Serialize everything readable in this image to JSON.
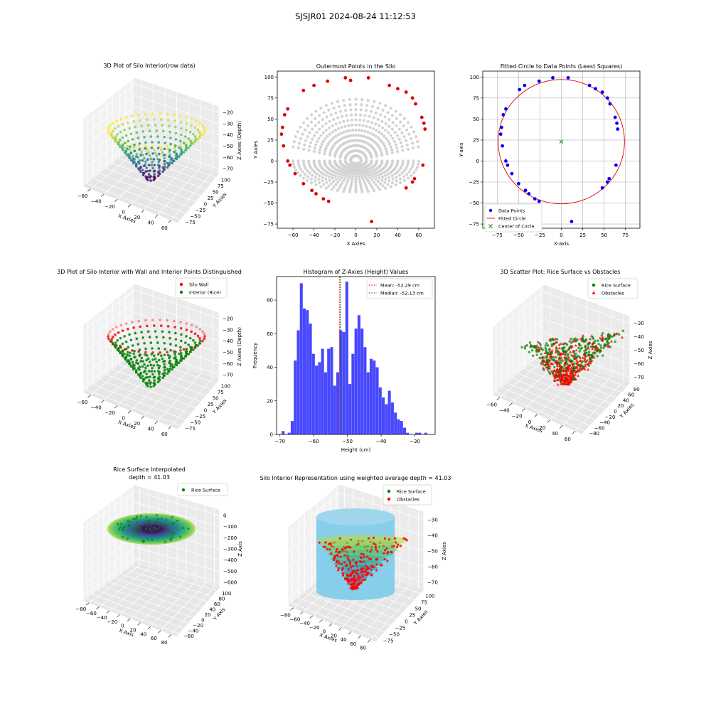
{
  "figure": {
    "title": "SJSJR01 2024-08-24 11:12:53"
  },
  "chart_data": [
    {
      "id": "p1",
      "type": "scatter",
      "title": "3D Plot of Silo Interior(row data)",
      "xlabel": "X Axies",
      "ylabel": "Y Axies",
      "zlabel": "Z Axies (Depth)",
      "x_ticks": [
        "−60",
        "−40",
        "−20",
        "0",
        "20",
        "40",
        "60"
      ],
      "y_ticks": [
        "−75",
        "−50",
        "−25",
        "0",
        "25",
        "50",
        "75",
        "100"
      ],
      "z_ticks": [
        "−20",
        "−30",
        "−40",
        "−50",
        "−60",
        "−70"
      ],
      "colormap": "viridis"
    },
    {
      "id": "p2",
      "type": "scatter",
      "title": "Outermost Points in the Silo",
      "xlabel": "X Axies",
      "ylabel": "Y Axies",
      "xlim": [
        -75,
        75
      ],
      "ylim": [
        -80,
        107
      ],
      "x_ticks": [
        -60,
        -40,
        -20,
        0,
        20,
        40,
        60
      ],
      "y_ticks": [
        -75,
        -50,
        -25,
        0,
        25,
        50,
        75,
        100
      ],
      "interior_color": "#d3d3d3",
      "outer_color": "#e00000",
      "outer_points": [
        [
          -65,
          62
        ],
        [
          -68,
          55
        ],
        [
          -70,
          40
        ],
        [
          -71,
          32
        ],
        [
          -69,
          18
        ],
        [
          -65,
          0
        ],
        [
          -63,
          -5
        ],
        [
          -58,
          -15
        ],
        [
          -50,
          -27
        ],
        [
          -42,
          -35
        ],
        [
          -38,
          -39
        ],
        [
          -31,
          -45
        ],
        [
          -26,
          -48
        ],
        [
          -10,
          99
        ],
        [
          -5,
          96
        ],
        [
          12,
          99
        ],
        [
          15,
          -72
        ],
        [
          32,
          90
        ],
        [
          40,
          86
        ],
        [
          48,
          82
        ],
        [
          54,
          75
        ],
        [
          57,
          68
        ],
        [
          63,
          52
        ],
        [
          65,
          45
        ],
        [
          66,
          38
        ],
        [
          64,
          -5
        ],
        [
          56,
          -21
        ],
        [
          54,
          -25
        ],
        [
          48,
          -32
        ],
        [
          -50,
          84
        ],
        [
          -40,
          90
        ],
        [
          -27,
          95
        ]
      ]
    },
    {
      "id": "p3",
      "type": "scatter",
      "title": "Fitted Circle to Data Points (Least Squares)",
      "xlabel": "X-axis",
      "ylabel": "Y-axis",
      "xlim": [
        -92,
        92
      ],
      "ylim": [
        -80,
        107
      ],
      "x_ticks": [
        -75,
        -50,
        -25,
        0,
        25,
        50,
        75
      ],
      "y_ticks": [
        -75,
        -50,
        -25,
        0,
        25,
        50,
        75,
        100
      ],
      "grid": true,
      "circle": {
        "center": [
          0,
          23
        ],
        "radius": 74
      },
      "legend": [
        "Data Points",
        "Fitted Circle",
        "Center of Circle"
      ],
      "legend_loc": "lower-left",
      "points": [
        [
          -65,
          62
        ],
        [
          -68,
          55
        ],
        [
          -70,
          40
        ],
        [
          -71,
          32
        ],
        [
          -69,
          18
        ],
        [
          -65,
          0
        ],
        [
          -63,
          -5
        ],
        [
          -58,
          -15
        ],
        [
          -50,
          -27
        ],
        [
          -42,
          -35
        ],
        [
          -38,
          -39
        ],
        [
          -31,
          -45
        ],
        [
          -26,
          -48
        ],
        [
          -10,
          99
        ],
        [
          8,
          99
        ],
        [
          12,
          -72
        ],
        [
          33,
          90
        ],
        [
          40,
          86
        ],
        [
          48,
          82
        ],
        [
          54,
          75
        ],
        [
          57,
          68
        ],
        [
          63,
          52
        ],
        [
          65,
          45
        ],
        [
          66,
          38
        ],
        [
          64,
          -5
        ],
        [
          56,
          -21
        ],
        [
          54,
          -25
        ],
        [
          48,
          -32
        ],
        [
          -49,
          85
        ],
        [
          -43,
          90
        ],
        [
          -26,
          95
        ]
      ]
    },
    {
      "id": "p4",
      "type": "scatter",
      "title": "3D Plot of Silo Interior with Wall and Interior Points Distinguished",
      "xlabel": "X Axies",
      "ylabel": "Y Axies",
      "zlabel": "Z Axies (Depth)",
      "x_ticks": [
        "−60",
        "−40",
        "−20",
        "0",
        "20",
        "40",
        "60"
      ],
      "y_ticks": [
        "−75",
        "−50",
        "−25",
        "0",
        "25",
        "50",
        "75",
        "100"
      ],
      "z_ticks": [
        "−20",
        "−30",
        "−40",
        "−50",
        "−60",
        "−70"
      ],
      "legend": [
        "Silo Wall",
        "Interior (Rice)"
      ],
      "legend_loc": "top-right"
    },
    {
      "id": "p5",
      "type": "bar",
      "title": "Histogram of Z-Axies (Height) Values",
      "xlabel": "Height (cm)",
      "ylabel": "Frequency",
      "xlim": [
        -71,
        -24
      ],
      "ylim": [
        0,
        94
      ],
      "x_ticks": [
        -70,
        -60,
        -50,
        -40,
        -30
      ],
      "y_ticks": [
        0,
        20,
        40,
        60,
        80
      ],
      "bin_start": -69.5,
      "bin_width": 0.9,
      "counts": [
        2,
        0,
        1,
        8,
        44,
        62,
        90,
        75,
        74,
        66,
        48,
        41,
        43,
        51,
        37,
        51,
        52,
        29,
        37,
        62,
        61,
        91,
        30,
        48,
        63,
        71,
        63,
        52,
        37,
        45,
        44,
        40,
        28,
        22,
        18,
        26,
        19,
        13,
        9,
        8,
        4,
        1,
        0,
        0,
        1,
        1,
        0,
        1
      ],
      "mean": -52.29,
      "median": -52.13,
      "bar_color": "#0000ff",
      "legend": [
        "Mean: -52.29 cm",
        "Median: -52.13 cm"
      ],
      "legend_loc": "top-right"
    },
    {
      "id": "p6",
      "type": "scatter",
      "title": "3D Scatter Plot: Rice Surface vs Obstacles",
      "xlabel": "X Axies",
      "ylabel": "Y Axies",
      "zlabel": "Z Axies",
      "x_ticks": [
        "−60",
        "−40",
        "−20",
        "0",
        "20",
        "40",
        "60"
      ],
      "y_ticks": [
        "−80",
        "−60",
        "−40",
        "−20",
        "0",
        "20",
        "40",
        "60",
        "80"
      ],
      "z_ticks": [
        "−30",
        "−40",
        "−50",
        "−60",
        "−70"
      ],
      "legend": [
        "Rice Surface",
        "Obstacles"
      ],
      "legend_loc": "top-right"
    },
    {
      "id": "p7",
      "type": "scatter",
      "title": "Rice Surface Interpolated",
      "subtitle": "depth = 41.03",
      "xlabel": "X Axis",
      "ylabel": "Y Axis",
      "zlabel": "Z Axis",
      "x_ticks": [
        "−80",
        "−60",
        "−40",
        "−20",
        "0",
        "20",
        "40",
        "60",
        "80"
      ],
      "y_ticks": [
        "−60",
        "−40",
        "−20",
        "0",
        "20",
        "40",
        "60",
        "80",
        "100"
      ],
      "z_ticks": [
        "0",
        "−100",
        "−200",
        "−300",
        "−400",
        "−500",
        "−600"
      ],
      "legend": [
        "Rice Surface"
      ],
      "legend_loc": "top-right"
    },
    {
      "id": "p8",
      "type": "scatter",
      "title": "Silo Interior Representation using weighted average depth = 41.03",
      "xlabel": "X Axies",
      "ylabel": "Y Axies",
      "zlabel": "Z Axies",
      "x_ticks": [
        "−80",
        "−60",
        "−40",
        "−20",
        "0",
        "20",
        "40",
        "60",
        "80"
      ],
      "y_ticks": [
        "−75",
        "−50",
        "−25",
        "0",
        "25",
        "50",
        "75",
        "100"
      ],
      "z_ticks": [
        "−30",
        "−40",
        "−50",
        "−60",
        "−70"
      ],
      "legend": [
        "Rice Surface",
        "Obstacles"
      ],
      "legend_loc": "top-center",
      "cylinder_color": "#87ceeb"
    }
  ]
}
